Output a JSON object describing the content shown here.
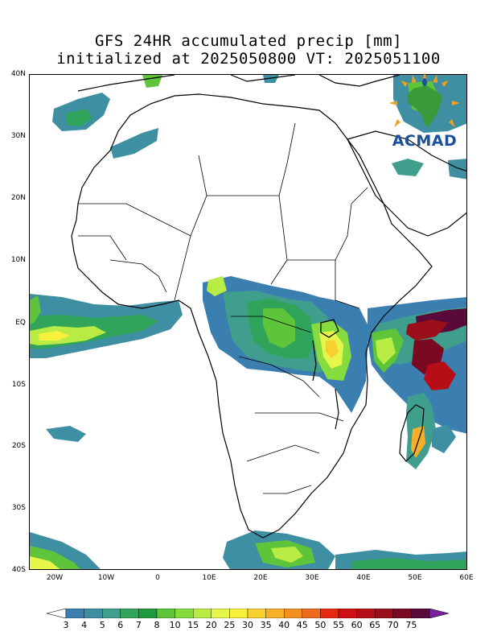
{
  "title": {
    "line1": "GFS 24HR accumulated precip [mm]",
    "line2": "initialized at 2025050800 VT: 2025051100"
  },
  "map": {
    "lat_labels": [
      "40N",
      "30N",
      "20N",
      "10N",
      "EQ",
      "10S",
      "20S",
      "30S",
      "40S"
    ],
    "lon_labels": [
      "20W",
      "10W",
      "0",
      "10E",
      "20E",
      "30E",
      "40E",
      "50E",
      "60E"
    ],
    "lat_range": [
      -40,
      40
    ],
    "lon_range": [
      -25,
      60
    ],
    "coastline_color": "#000000",
    "background_color": "#ffffff"
  },
  "logo": {
    "text": "ACMAD",
    "text_color": "#1a4f9c",
    "continent_color": "#3a9a3a",
    "ray_color": "#f0a020"
  },
  "colorbar": {
    "labels": [
      "3",
      "4",
      "5",
      "6",
      "7",
      "8",
      "10",
      "15",
      "20",
      "25",
      "30",
      "35",
      "40",
      "45",
      "50",
      "55",
      "60",
      "65",
      "70",
      "75"
    ],
    "colors": [
      "#ffffff",
      "#3a7fb0",
      "#3f8fa3",
      "#3f9f8c",
      "#31a45c",
      "#1f9a3a",
      "#5ec43a",
      "#86db3e",
      "#b8ec45",
      "#e6f54a",
      "#f8f03a",
      "#f7d030",
      "#f5b028",
      "#f29022",
      "#ee6a1c",
      "#e62a12",
      "#cc0f10",
      "#b50e16",
      "#9a0f1a",
      "#7a0a22",
      "#5a0a3a",
      "#7a1fa0"
    ]
  },
  "precip_areas": [
    {
      "name": "equatorial-atlantic",
      "intensity": "moderate"
    },
    {
      "name": "congo-basin",
      "intensity": "heavy"
    },
    {
      "name": "lake-victoria-region",
      "intensity": "heavy"
    },
    {
      "name": "somali-coast-indian-ocean",
      "intensity": "heavy"
    },
    {
      "name": "madagascar-east",
      "intensity": "moderate"
    },
    {
      "name": "southern-ocean",
      "intensity": "moderate"
    },
    {
      "name": "mediterranean-maghreb",
      "intensity": "light"
    }
  ]
}
